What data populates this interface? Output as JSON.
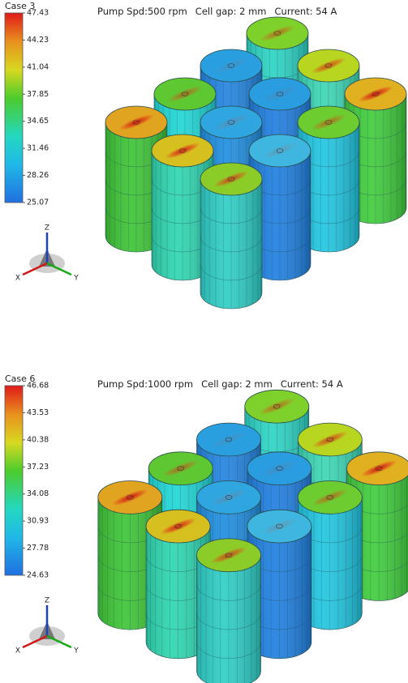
{
  "panels": [
    {
      "case": "Case 3",
      "header": [
        "Pump Spd:500 rpm",
        "Cell gap: 2 mm",
        "Current: 54 A"
      ],
      "colorbar": [
        47.43,
        44.23,
        41.04,
        37.85,
        34.65,
        31.46,
        28.26,
        25.07
      ],
      "axes": [
        "Z",
        "X",
        "Y"
      ]
    },
    {
      "case": "Case 6",
      "header": [
        "Pump Spd:1000 rpm",
        "Cell gap: 2 mm",
        "Current: 54 A"
      ],
      "colorbar": [
        46.68,
        43.53,
        40.38,
        37.23,
        34.08,
        30.93,
        27.78,
        24.63
      ],
      "axes": [
        "Z",
        "X",
        "Y"
      ]
    }
  ]
}
